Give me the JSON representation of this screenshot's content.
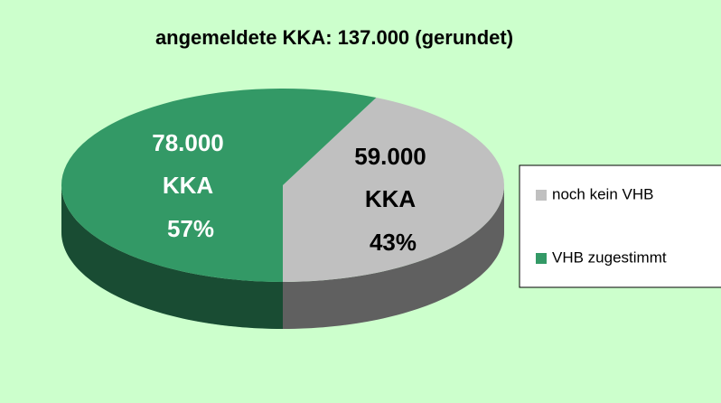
{
  "chart_data": {
    "type": "pie",
    "title": "angemeldete KKA: 137.000 (gerundet)",
    "categories": [
      "noch kein VHB",
      "VHB zugestimmt"
    ],
    "values": [
      59000,
      78000
    ],
    "value_labels": [
      "59.000",
      "78.000"
    ],
    "unit": "KKA",
    "percents": [
      43,
      57
    ],
    "percent_labels": [
      "43%",
      "57%"
    ],
    "colors": [
      "#c0c0c0",
      "#339966"
    ],
    "label_colors": [
      "#000000",
      "#ffffff"
    ],
    "three_d": true,
    "legend": "right"
  }
}
